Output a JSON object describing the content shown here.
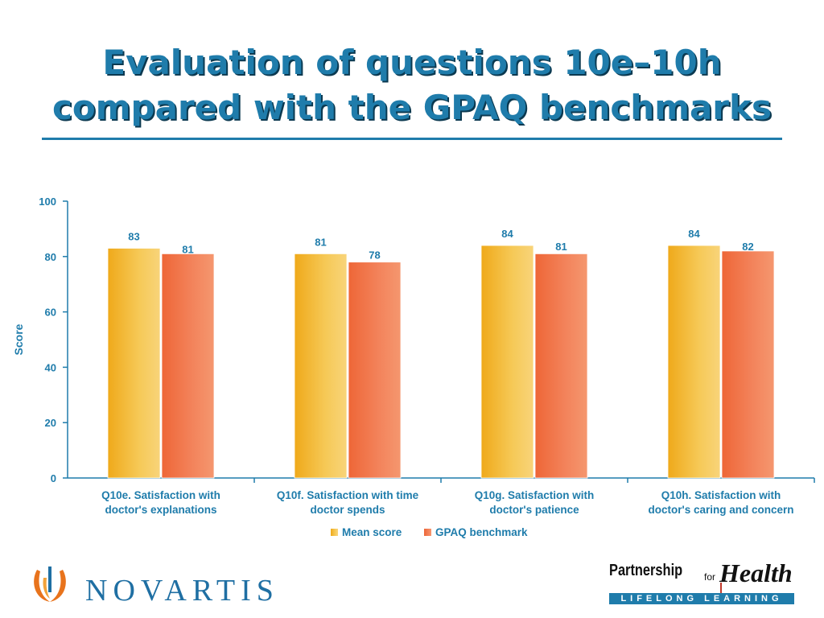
{
  "slide": {
    "title_line1": "Evaluation of questions 10e–10h",
    "title_line2": "compared with the GPAQ benchmarks",
    "accent_color": "#1f7cab"
  },
  "chart_data": {
    "type": "bar",
    "categories": [
      [
        "Q10e. Satisfaction with",
        "doctor's explanations"
      ],
      [
        "Q10f. Satisfaction with time",
        "doctor spends"
      ],
      [
        "Q10g. Satisfaction with",
        "doctor's patience"
      ],
      [
        "Q10h. Satisfaction with",
        "doctor's caring and concern"
      ]
    ],
    "series": [
      {
        "name": "Mean score",
        "values": [
          83,
          81,
          84,
          84
        ],
        "color": "#f2b524"
      },
      {
        "name": "GPAQ benchmark",
        "values": [
          81,
          78,
          81,
          82
        ],
        "color": "#f07146"
      }
    ],
    "ylabel": "Score",
    "ylim": [
      0,
      100
    ],
    "yticks": [
      0,
      20,
      40,
      60,
      80,
      100
    ],
    "data_labels": true,
    "legend_position": "bottom"
  },
  "logos": {
    "novartis": "NOVARTIS",
    "pfh_partnership": "Partnership",
    "pfh_for": "for",
    "pfh_health": "Health",
    "pfh_tagline": "LIFELONG LEARNING"
  }
}
